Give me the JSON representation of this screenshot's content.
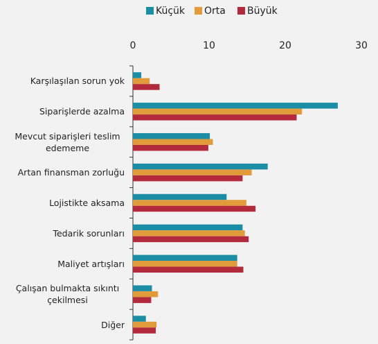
{
  "chart_data": {
    "type": "hbar",
    "categories": [
      "Karşılaşılan sorun yok",
      "Siparişlerde azalma",
      "Mevcut siparişleri teslim edememe",
      "Artan finansman zorluğu",
      "Lojistikte aksama",
      "Tedarik sorunları",
      "Maliyet artışları",
      "Çalışan bulmakta sıkıntı çekilmesi",
      "Diğer"
    ],
    "series": [
      {
        "name": "Küçük",
        "color": "#1b8ea6",
        "values": [
          1.1,
          26.9,
          10.1,
          17.7,
          12.3,
          14.4,
          13.7,
          2.5,
          1.7
        ]
      },
      {
        "name": "Orta",
        "color": "#e29b3b",
        "values": [
          2.2,
          22.2,
          10.5,
          15.6,
          14.9,
          14.7,
          13.7,
          3.3,
          3.1
        ]
      },
      {
        "name": "Büyük",
        "color": "#b22a3b",
        "values": [
          3.5,
          21.5,
          9.9,
          14.4,
          16.1,
          15.2,
          14.5,
          2.4,
          3.0
        ]
      }
    ],
    "xlim": [
      0,
      30
    ],
    "xticks": [
      0,
      10,
      20,
      30
    ],
    "legend": "top"
  }
}
